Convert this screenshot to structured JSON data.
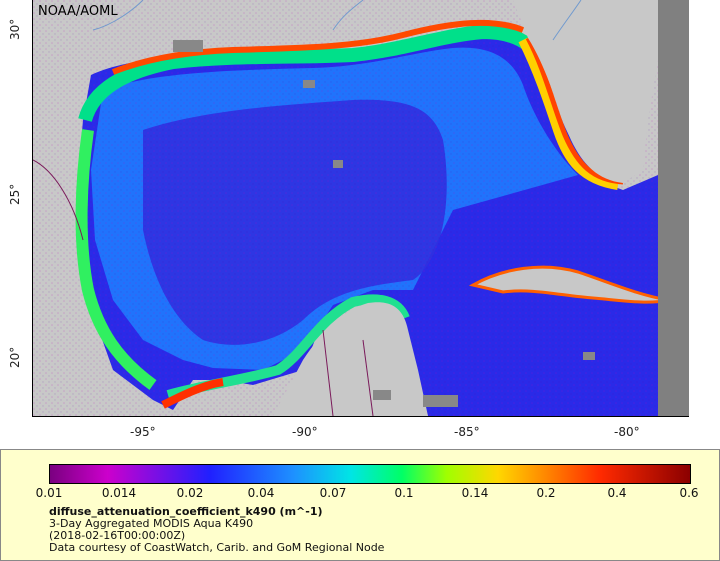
{
  "map": {
    "credit": "NOAA/AOML",
    "lat_labels": [
      "30°",
      "25°",
      "20°"
    ],
    "lon_labels": [
      "-95°",
      "-90°",
      "-85°",
      "-80°"
    ],
    "colors": {
      "land": "#c8c8c8",
      "nodata": "#808080",
      "ocean_low": "#2828e0",
      "ocean_mid": "#1e90ff",
      "coast_high": "#ff4000"
    }
  },
  "legend": {
    "ticks": [
      "0.01",
      "0.014",
      "0.02",
      "0.04",
      "0.07",
      "0.1",
      "0.14",
      "0.2",
      "0.4",
      "0.6"
    ],
    "variable": "diffuse_attenuation_coefficient_k490 (m^-1)",
    "dataset": "3-Day Aggregated MODIS Aqua K490",
    "time": "(2018-02-16T00:00:00Z)",
    "courtesy": "Data courtesy of CoastWatch, Carib. and GoM Regional Node"
  }
}
